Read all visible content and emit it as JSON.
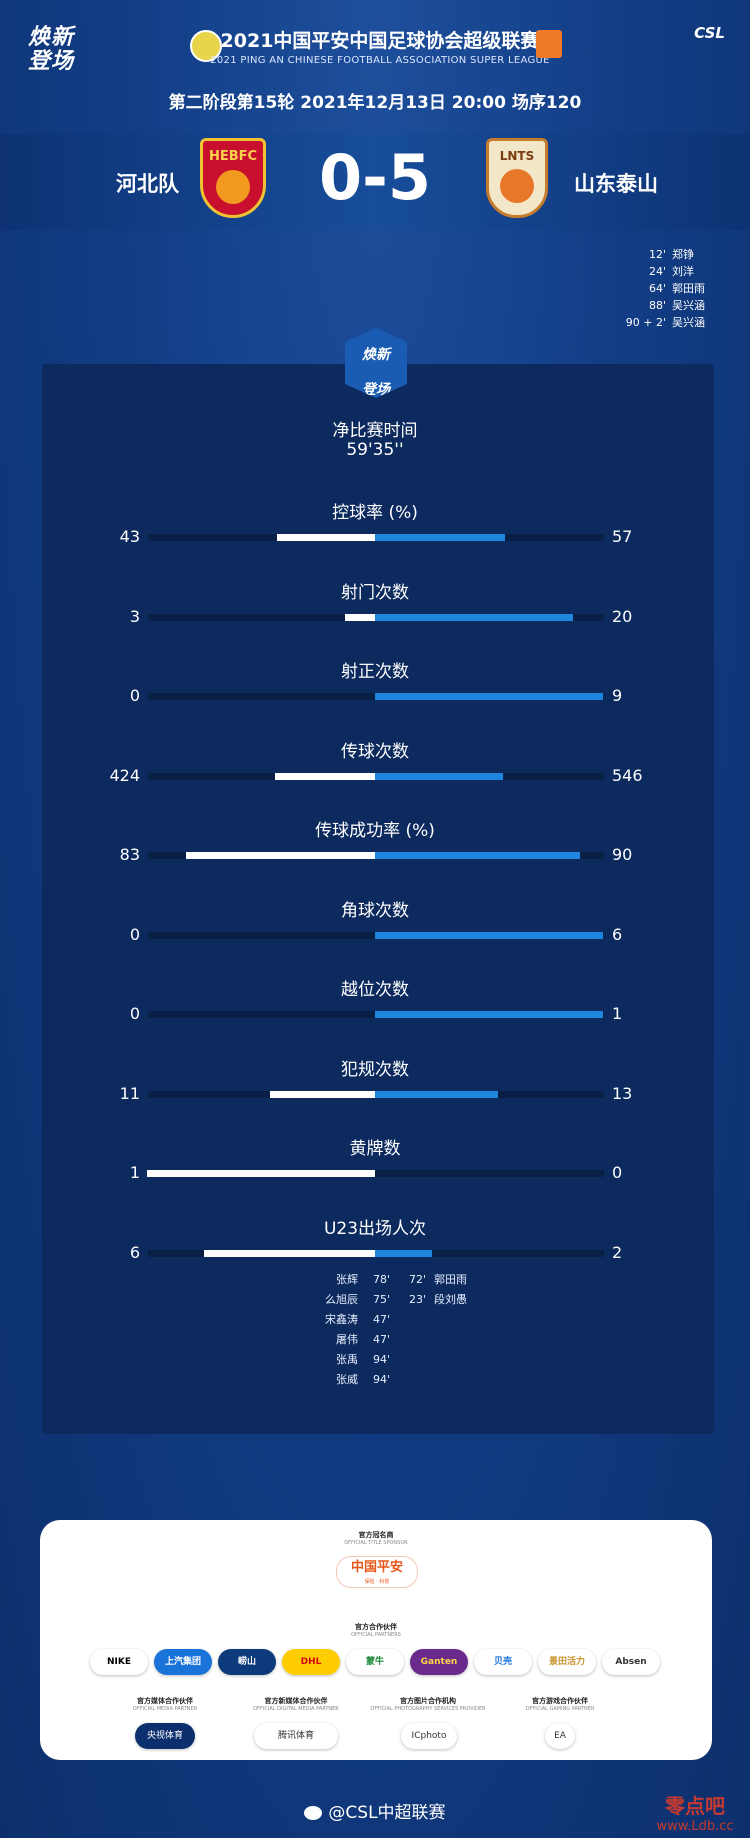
{
  "brand_mark": [
    "焕新",
    "登场"
  ],
  "league": {
    "title": "2021中国平安中国足球协会超级联赛",
    "subtitle": "2021 PING AN CHINESE FOOTBALL ASSOCIATION SUPER LEAGUE",
    "logo_text": "CSL"
  },
  "match": {
    "info": "第二阶段第15轮  2021年12月13日 20:00 场序120",
    "home": "河北队",
    "away": "山东泰山",
    "score": "0-5",
    "home_crest_text": "HEBFC",
    "away_crest_text": "LNTS"
  },
  "goals": [
    {
      "min": "12'",
      "player": "郑铮"
    },
    {
      "min": "24'",
      "player": "刘洋"
    },
    {
      "min": "64'",
      "player": "郭田雨"
    },
    {
      "min": "88'",
      "player": "吴兴涵"
    },
    {
      "min": "90 + 2'",
      "player": "吴兴涵"
    }
  ],
  "net_time": {
    "label": "净比赛时间",
    "value": "59'35''"
  },
  "stats": [
    {
      "title": "控球率 (%)",
      "home": "43",
      "away": "57",
      "home_frac": 0.43,
      "away_frac": 0.57
    },
    {
      "title": "射门次数",
      "home": "3",
      "away": "20",
      "home_frac": 0.13,
      "away_frac": 0.87
    },
    {
      "title": "射正次数",
      "home": "0",
      "away": "9",
      "home_frac": 0.0,
      "away_frac": 1.0
    },
    {
      "title": "传球次数",
      "home": "424",
      "away": "546",
      "home_frac": 0.44,
      "away_frac": 0.56
    },
    {
      "title": "传球成功率 (%)",
      "home": "83",
      "away": "90",
      "home_frac": 0.83,
      "away_frac": 0.9
    },
    {
      "title": "角球次数",
      "home": "0",
      "away": "6",
      "home_frac": 0.0,
      "away_frac": 1.0
    },
    {
      "title": "越位次数",
      "home": "0",
      "away": "1",
      "home_frac": 0.0,
      "away_frac": 1.0
    },
    {
      "title": "犯规次数",
      "home": "11",
      "away": "13",
      "home_frac": 0.46,
      "away_frac": 0.54
    },
    {
      "title": "黄牌数",
      "home": "1",
      "away": "0",
      "home_frac": 1.0,
      "away_frac": 0.0
    },
    {
      "title": "U23出场人次",
      "home": "6",
      "away": "2",
      "home_frac": 0.75,
      "away_frac": 0.25
    }
  ],
  "u23_home": [
    {
      "player": "张辉",
      "min": "78'"
    },
    {
      "player": "么旭辰",
      "min": "75'"
    },
    {
      "player": "宋鑫涛",
      "min": "47'"
    },
    {
      "player": "屠伟",
      "min": "47'"
    },
    {
      "player": "张禹",
      "min": "94'"
    },
    {
      "player": "张威",
      "min": "94'"
    }
  ],
  "u23_away": [
    {
      "min": "72'",
      "player": "郭田雨"
    },
    {
      "min": "23'",
      "player": "段刘愚"
    }
  ],
  "sponsors": {
    "title_sponsor_label": "官方冠名商",
    "title_sponsor_label_en": "OFFICIAL TITLE SPONSOR",
    "title_sponsor": "中国平安",
    "title_sponsor_tag": "保险 · 科技",
    "partners_label": "官方合作伙伴",
    "partners_label_en": "OFFICIAL PARTNERS",
    "partners": [
      "NIKE",
      "上汽集团",
      "崂山",
      "DHL",
      "蒙牛",
      "Ganten",
      "贝壳",
      "景田活力",
      "Absen"
    ],
    "media": [
      {
        "label": "官方媒体合作伙伴",
        "label_en": "OFFICIAL MEDIA PARTNER",
        "name": "央视体育"
      },
      {
        "label": "官方新媒体合作伙伴",
        "label_en": "OFFICIAL DIGITAL MEDIA PARTNER",
        "name": "腾讯体育"
      },
      {
        "label": "官方图片合作机构",
        "label_en": "OFFICIAL PHOTOGRAPHY SERVICES PROVIDER",
        "name": "ICphoto"
      },
      {
        "label": "官方游戏合作伙伴",
        "label_en": "OFFICIAL GAMING PARTNER",
        "name": "EA"
      }
    ]
  },
  "footer": {
    "weibo": "@CSL中超联赛",
    "watermark": "零点吧",
    "watermark_url": "www.Ldb.cc"
  },
  "colors": {
    "home_bar": "#ffffff",
    "away_bar": "#1f86e0",
    "background": "#123e86"
  }
}
